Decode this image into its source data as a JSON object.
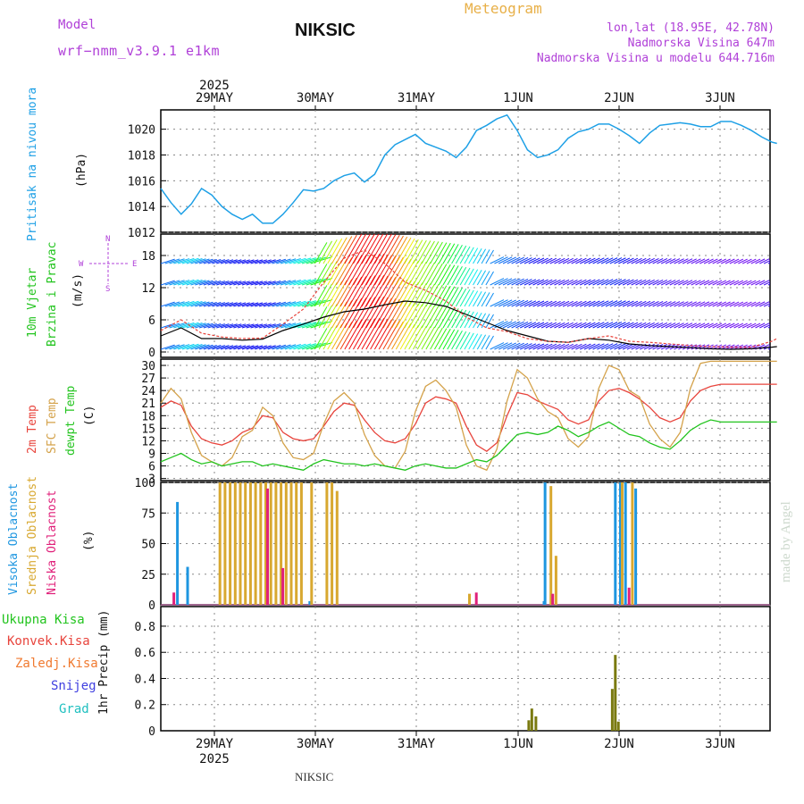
{
  "header": {
    "model_label": "Model",
    "model_name": "wrf−nmm_v3.9.1 e1km",
    "title": "NIKSIC",
    "meteogram": "Meteogram",
    "lonlat": "lon,lat (18.95E, 42.78N)",
    "altitude": "Nadmorska Visina 647m",
    "model_altitude": "Nadmorska Visina u modelu 644.716m",
    "footer": "NIKSIC",
    "watermark": "made by Angel"
  },
  "colors": {
    "pressure": "#1ea0e6",
    "temp2m": "#e8443c",
    "sfctemp": "#d4a24a",
    "dewpt": "#22c41e",
    "high_cloud": "#1e96e0",
    "mid_cloud": "#d8a830",
    "low_cloud": "#e0207a",
    "precip_total": "#7a7a10",
    "purple": "#b040d8"
  },
  "time_axis": {
    "year": "2025",
    "days": [
      "29MAY",
      "30MAY",
      "31MAY",
      "1JUN",
      "2JUN",
      "3JUN"
    ]
  },
  "chart_data": [
    {
      "type": "line",
      "panel": "pressure",
      "ylabel_left": "Pritisak na nivou mora",
      "unit": "(hPa)",
      "yticks": [
        "1012",
        "1014",
        "1016",
        "1018",
        "1020"
      ],
      "ylim": [
        1012,
        1021.5
      ],
      "x_days": [
        0,
        0.1,
        0.2,
        0.3,
        0.4,
        0.5,
        0.6,
        0.7,
        0.8,
        0.9,
        1.0,
        1.1,
        1.2,
        1.3,
        1.4,
        1.5,
        1.6,
        1.7,
        1.8,
        1.9,
        2.0,
        2.1,
        2.2,
        2.3,
        2.4,
        2.5,
        2.6,
        2.7,
        2.8,
        2.9,
        3.0,
        3.1,
        3.2,
        3.3,
        3.4,
        3.5,
        3.6,
        3.7,
        3.8,
        3.9,
        4.0,
        4.1,
        4.2,
        4.3,
        4.4,
        4.5,
        4.6,
        4.7,
        4.8,
        4.9,
        5.0,
        5.1,
        5.2,
        5.3,
        5.4,
        5.5,
        5.6,
        5.7,
        5.8,
        5.9,
        6.0,
        6.05
      ],
      "series": [
        {
          "values": [
            1015.4,
            1014.3,
            1013.4,
            1014.2,
            1015.4,
            1014.9,
            1014.0,
            1013.4,
            1013.0,
            1013.4,
            1012.7,
            1012.7,
            1013.4,
            1014.3,
            1015.3,
            1015.2,
            1015.4,
            1016.0,
            1016.4,
            1016.6,
            1015.9,
            1016.5,
            1018.0,
            1018.8,
            1019.2,
            1019.6,
            1018.9,
            1018.6,
            1018.3,
            1017.8,
            1018.6,
            1019.9,
            1020.3,
            1020.8,
            1021.1,
            1019.9,
            1018.4,
            1017.8,
            1018.0,
            1018.4,
            1019.3,
            1019.8,
            1020.0,
            1020.4,
            1020.4,
            1020.0,
            1019.5,
            1018.9,
            1019.7,
            1020.3,
            1020.4,
            1020.5,
            1020.4,
            1020.2,
            1020.2,
            1020.6,
            1020.6,
            1020.3,
            1019.9,
            1019.4,
            1019.0,
            1018.9
          ]
        }
      ]
    },
    {
      "type": "line",
      "panel": "wind",
      "ylabel_left": "10m Vjetar",
      "ylabel_left2": "Brzina i Pravac",
      "unit": "(m/s)",
      "compass": [
        "N",
        "E",
        "W",
        "S"
      ],
      "yticks": [
        "0",
        "6",
        "12",
        "18"
      ],
      "ylim": [
        -1,
        22
      ],
      "x_days": [
        0,
        0.2,
        0.4,
        0.6,
        0.8,
        1.0,
        1.2,
        1.4,
        1.6,
        1.8,
        2.0,
        2.2,
        2.4,
        2.6,
        2.8,
        3.0,
        3.2,
        3.4,
        3.6,
        3.8,
        4.0,
        4.2,
        4.4,
        4.6,
        4.8,
        5.0,
        5.2,
        5.4,
        5.6,
        5.8,
        6.0,
        6.05
      ],
      "series": [
        {
          "values": [
            3.0,
            4.5,
            2.5,
            2.5,
            2.2,
            2.4,
            4.0,
            5.2,
            6.5,
            7.5,
            8.0,
            8.8,
            9.5,
            9.2,
            8.5,
            7.0,
            5.5,
            4.0,
            3.0,
            2.0,
            1.8,
            2.5,
            2.2,
            1.5,
            1.2,
            1.0,
            0.8,
            0.6,
            0.5,
            0.6,
            0.9,
            1.0
          ]
        },
        {
          "values": [
            4.0,
            6.0,
            3.5,
            2.8,
            2.5,
            2.6,
            5.2,
            8.0,
            13.0,
            17.5,
            19.0,
            16.5,
            13.0,
            11.5,
            9.5,
            6.5,
            4.5,
            3.8,
            2.5,
            2.0,
            1.8,
            2.5,
            3.0,
            2.0,
            1.8,
            1.5,
            1.2,
            1.0,
            0.9,
            0.9,
            2.0,
            2.5
          ]
        }
      ]
    },
    {
      "type": "line",
      "panel": "temperature",
      "ylabel_left": "2m Temp",
      "ylabel_left2": "SFC Temp",
      "ylabel_left3": "dewpt Temp",
      "unit": "(C)",
      "yticks": [
        "3",
        "6",
        "9",
        "12",
        "15",
        "18",
        "21",
        "24",
        "27",
        "30"
      ],
      "ylim": [
        2.5,
        31.5
      ],
      "x_days": [
        0,
        0.1,
        0.2,
        0.3,
        0.4,
        0.5,
        0.6,
        0.7,
        0.8,
        0.9,
        1.0,
        1.1,
        1.2,
        1.3,
        1.4,
        1.5,
        1.6,
        1.7,
        1.8,
        1.9,
        2.0,
        2.1,
        2.2,
        2.3,
        2.4,
        2.5,
        2.6,
        2.7,
        2.8,
        2.9,
        3.0,
        3.1,
        3.2,
        3.3,
        3.4,
        3.5,
        3.6,
        3.7,
        3.8,
        3.9,
        4.0,
        4.1,
        4.2,
        4.3,
        4.4,
        4.5,
        4.6,
        4.7,
        4.8,
        4.9,
        5.0,
        5.1,
        5.2,
        5.3,
        5.4,
        5.5,
        5.6,
        5.7,
        5.8,
        5.9,
        6.0,
        6.05
      ],
      "series": [
        {
          "name": "2m Temp",
          "values": [
            20.0,
            21.5,
            20.5,
            15.5,
            12.5,
            11.5,
            11.0,
            12.0,
            14.0,
            15.0,
            18.0,
            17.5,
            14.0,
            12.5,
            12.0,
            12.5,
            15.5,
            19.0,
            21.0,
            20.5,
            17.0,
            14.0,
            12.0,
            11.5,
            12.5,
            16.0,
            21.0,
            22.5,
            22.0,
            21.0,
            15.5,
            11.0,
            9.5,
            11.5,
            18.0,
            23.5,
            23.0,
            21.5,
            20.5,
            19.5,
            17.0,
            16.0,
            17.0,
            21.5,
            24.0,
            24.5,
            23.5,
            22.0,
            20.0,
            17.5,
            16.5,
            17.5,
            21.5,
            24.0,
            25.0,
            25.5,
            25.5,
            25.5,
            25.5,
            25.5,
            25.5,
            25.5
          ]
        },
        {
          "name": "SFC Temp",
          "values": [
            21.0,
            24.5,
            22.0,
            14.0,
            8.5,
            7.0,
            6.0,
            8.0,
            13.0,
            14.5,
            20.0,
            18.0,
            11.5,
            8.0,
            7.5,
            9.0,
            16.0,
            21.5,
            23.5,
            21.0,
            13.5,
            8.5,
            6.0,
            5.5,
            9.5,
            19.0,
            25.0,
            26.5,
            24.0,
            20.0,
            11.0,
            6.0,
            5.0,
            10.0,
            21.5,
            29.0,
            27.0,
            22.0,
            19.0,
            17.5,
            12.5,
            10.5,
            13.0,
            24.5,
            30.0,
            29.0,
            24.0,
            22.5,
            16.0,
            12.5,
            10.5,
            14.0,
            24.5,
            30.5,
            31.0,
            31.0,
            31.0,
            31.0,
            31.0,
            31.0,
            31.0,
            31.0
          ]
        },
        {
          "name": "dewpt Temp",
          "values": [
            7.0,
            8.0,
            9.0,
            7.5,
            6.5,
            7.0,
            6.0,
            6.5,
            7.0,
            7.0,
            6.0,
            6.5,
            6.0,
            5.5,
            5.0,
            6.5,
            7.5,
            7.0,
            6.5,
            6.5,
            6.0,
            6.5,
            6.0,
            5.5,
            5.0,
            6.0,
            6.5,
            6.0,
            5.5,
            5.5,
            6.5,
            7.5,
            7.0,
            8.5,
            11.0,
            13.5,
            14.0,
            13.5,
            14.0,
            15.5,
            14.5,
            13.0,
            14.0,
            15.5,
            16.5,
            15.0,
            13.5,
            13.0,
            11.5,
            10.5,
            10.0,
            12.0,
            14.5,
            16.0,
            17.0,
            16.5,
            16.5,
            16.5,
            16.5,
            16.5,
            16.5,
            16.5
          ]
        }
      ]
    },
    {
      "type": "bar",
      "panel": "clouds",
      "ylabel_left": "Visoka Oblacnost",
      "ylabel_left2": "Srednja Oblacnost",
      "ylabel_left3": "Niska Oblacnost",
      "unit": "(%)",
      "yticks": [
        "0",
        "25",
        "50",
        "75",
        "100"
      ],
      "ylim": [
        0,
        100
      ],
      "series": [
        {
          "name": "Visoka Oblacnost",
          "x_days": [
            0.15,
            0.25,
            1.45,
            3.75,
            3.76,
            4.45,
            4.5,
            4.55,
            4.65
          ],
          "values": [
            84,
            31,
            3,
            3,
            100,
            100,
            100,
            100,
            95
          ]
        },
        {
          "name": "Srednja Oblacnost",
          "x_days": [
            0.55,
            0.6,
            0.65,
            0.7,
            0.75,
            0.8,
            0.85,
            0.9,
            0.95,
            1.0,
            1.05,
            1.1,
            1.15,
            1.2,
            1.25,
            1.3,
            1.35,
            1.45,
            1.6,
            1.65,
            1.7,
            3.0,
            3.8,
            3.85,
            4.5,
            4.6
          ],
          "values": [
            100,
            100,
            100,
            100,
            100,
            100,
            100,
            100,
            100,
            100,
            100,
            100,
            100,
            100,
            100,
            100,
            100,
            100,
            100,
            100,
            93,
            9,
            97,
            40,
            100,
            100
          ]
        },
        {
          "name": "Niska Oblacnost",
          "x_days": [
            0.08,
            1.0,
            1.15,
            3.05,
            3.8,
            4.55
          ],
          "values": [
            10,
            95,
            30,
            10,
            9,
            14
          ]
        }
      ]
    },
    {
      "type": "bar",
      "panel": "precip",
      "ylabel_left": "1hr Precip (mm)",
      "legend": [
        "Ukupna Kisa",
        "Konvek.Kisa",
        "Zaledj.Kisa",
        "Snijeg",
        "Grad"
      ],
      "yticks": [
        "0",
        "0.2",
        "0.4",
        "0.6",
        "0.8"
      ],
      "ylim": [
        0,
        0.95
      ],
      "series": [
        {
          "name": "Ukupna Kisa",
          "x_days": [
            3.6,
            3.63,
            3.67,
            4.42,
            4.45,
            4.48
          ],
          "values": [
            0.08,
            0.17,
            0.11,
            0.32,
            0.58,
            0.07
          ]
        }
      ]
    }
  ]
}
